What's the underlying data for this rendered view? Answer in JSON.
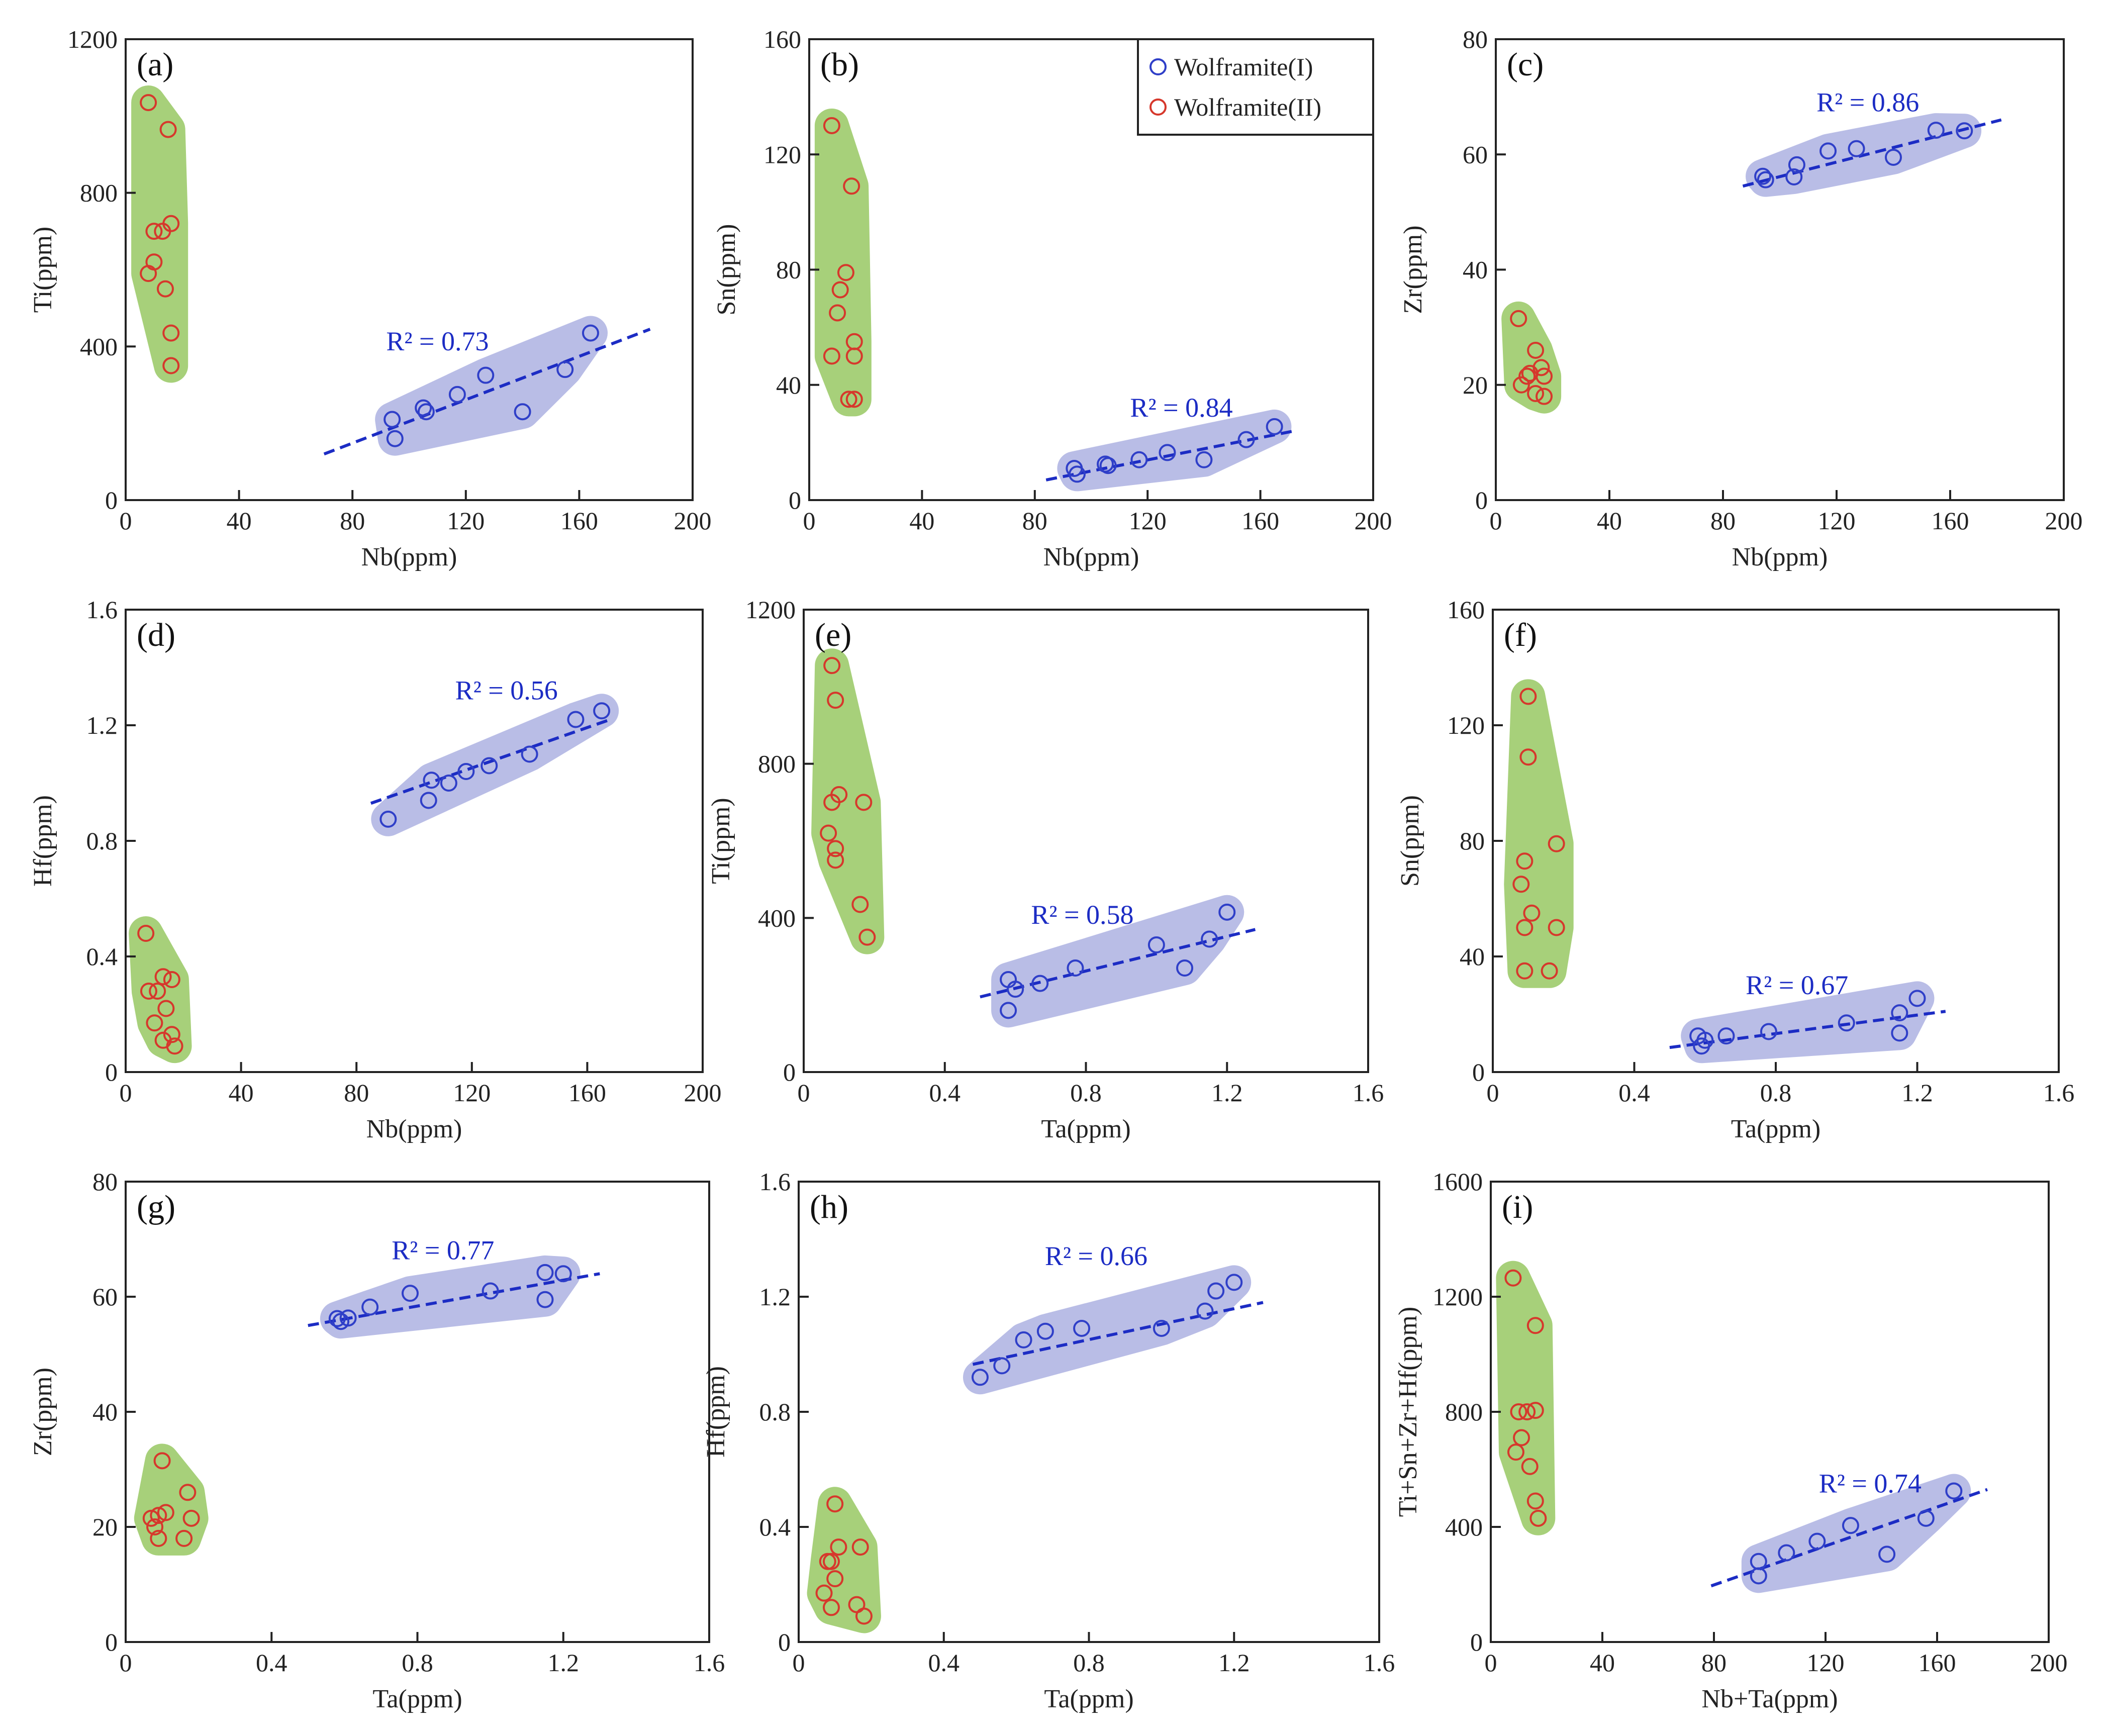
{
  "figure": {
    "colors": {
      "wolframite_I": "#2f3fc8",
      "wolframite_II": "#d6382c",
      "hull_I": "#b9bde6",
      "hull_II": "#a7d07a",
      "fit_line": "#1c2cc4",
      "axis": "#222222"
    }
  },
  "legend": {
    "entries": [
      {
        "label": "Wolframite(I)",
        "color": "#2f3fc8"
      },
      {
        "label": "Wolframite(II)",
        "color": "#d6382c"
      }
    ]
  },
  "chart_data": [
    {
      "panel_label": "(a)",
      "type": "scatter",
      "xlabel": "Nb(ppm)",
      "ylabel": "Ti(ppm)",
      "xlim": [
        0,
        200
      ],
      "ylim": [
        0,
        1200
      ],
      "xticks": [
        "0",
        "40",
        "80",
        "120",
        "160",
        "200"
      ],
      "yticks": [
        "0",
        "400",
        "800",
        "1200"
      ],
      "r2_text": "R² = 0.73",
      "r2_at": [
        110,
        390
      ],
      "fit_line": [
        [
          70,
          120
        ],
        [
          185,
          445
        ]
      ],
      "series": [
        {
          "name": "Wolframite(I)",
          "points": [
            [
              94,
              210
            ],
            [
              95,
              160
            ],
            [
              105,
              240
            ],
            [
              106,
              230
            ],
            [
              117,
              275
            ],
            [
              127,
              325
            ],
            [
              140,
              230
            ],
            [
              155,
              340
            ],
            [
              164,
              435
            ]
          ]
        },
        {
          "name": "Wolframite(II)",
          "points": [
            [
              8,
              1035
            ],
            [
              15,
              965
            ],
            [
              10,
              700
            ],
            [
              13,
              700
            ],
            [
              16,
              720
            ],
            [
              10,
              620
            ],
            [
              8,
              590
            ],
            [
              14,
              550
            ],
            [
              16,
              435
            ],
            [
              16,
              350
            ]
          ]
        }
      ]
    },
    {
      "panel_label": "(b)",
      "type": "scatter",
      "xlabel": "Nb(ppm)",
      "ylabel": "Sn(ppm)",
      "xlim": [
        0,
        200
      ],
      "ylim": [
        0,
        160
      ],
      "xticks": [
        "0",
        "40",
        "80",
        "120",
        "160",
        "200"
      ],
      "yticks": [
        "0",
        "40",
        "80",
        "120",
        "160"
      ],
      "r2_text": "R² = 0.84",
      "r2_at": [
        132,
        29
      ],
      "fit_line": [
        [
          84,
          7
        ],
        [
          172,
          24
        ]
      ],
      "series": [
        {
          "name": "Wolframite(I)",
          "points": [
            [
              94,
              11
            ],
            [
              95,
              9
            ],
            [
              105,
              12.5
            ],
            [
              106,
              12
            ],
            [
              117,
              14
            ],
            [
              127,
              16.5
            ],
            [
              140,
              14
            ],
            [
              155,
              21
            ],
            [
              165,
              25.5
            ]
          ]
        },
        {
          "name": "Wolframite(II)",
          "points": [
            [
              8,
              130
            ],
            [
              15,
              109
            ],
            [
              13,
              79
            ],
            [
              11,
              73
            ],
            [
              10,
              65
            ],
            [
              16,
              55
            ],
            [
              16,
              50
            ],
            [
              8,
              50
            ],
            [
              14,
              35
            ],
            [
              16,
              35
            ]
          ]
        }
      ]
    },
    {
      "panel_label": "(c)",
      "type": "scatter",
      "xlabel": "Nb(ppm)",
      "ylabel": "Zr(ppm)",
      "xlim": [
        0,
        200
      ],
      "ylim": [
        0,
        80
      ],
      "xticks": [
        "0",
        "40",
        "80",
        "120",
        "160",
        "200"
      ],
      "yticks": [
        "0",
        "20",
        "40",
        "60",
        "80"
      ],
      "r2_text": "R² = 0.86",
      "r2_at": [
        131,
        67.5
      ],
      "fit_line": [
        [
          87,
          54.5
        ],
        [
          178,
          66
        ]
      ],
      "series": [
        {
          "name": "Wolframite(I)",
          "points": [
            [
              94,
              56.2
            ],
            [
              95,
              55.6
            ],
            [
              105,
              56.1
            ],
            [
              106,
              58.2
            ],
            [
              117,
              60.6
            ],
            [
              127,
              61
            ],
            [
              140,
              59.5
            ],
            [
              155,
              64.2
            ],
            [
              165,
              64.1
            ]
          ]
        },
        {
          "name": "Wolframite(II)",
          "points": [
            [
              8,
              31.5
            ],
            [
              14,
              26
            ],
            [
              16,
              23
            ],
            [
              12,
              22
            ],
            [
              11,
              21.5
            ],
            [
              17,
              21.5
            ],
            [
              9,
              20
            ],
            [
              14,
              18.5
            ],
            [
              17,
              18
            ]
          ]
        }
      ]
    },
    {
      "panel_label": "(d)",
      "type": "scatter",
      "xlabel": "Nb(ppm)",
      "ylabel": "Hf(ppm)",
      "xlim": [
        0,
        200
      ],
      "ylim": [
        0,
        1.6
      ],
      "xticks": [
        "0",
        "40",
        "80",
        "120",
        "160",
        "200"
      ],
      "yticks": [
        "0",
        "0.4",
        "0.8",
        "1.2",
        "1.6"
      ],
      "r2_text": "R² = 0.56",
      "r2_at": [
        132,
        1.29
      ],
      "fit_line": [
        [
          85,
          0.93
        ],
        [
          168,
          1.22
        ]
      ],
      "series": [
        {
          "name": "Wolframite(I)",
          "points": [
            [
              91,
              0.875
            ],
            [
              105,
              0.94
            ],
            [
              106,
              1.01
            ],
            [
              112,
              1.0
            ],
            [
              118,
              1.04
            ],
            [
              126,
              1.06
            ],
            [
              140,
              1.1
            ],
            [
              156,
              1.22
            ],
            [
              165,
              1.25
            ]
          ]
        },
        {
          "name": "Wolframite(II)",
          "points": [
            [
              7,
              0.48
            ],
            [
              13,
              0.33
            ],
            [
              16,
              0.32
            ],
            [
              8,
              0.28
            ],
            [
              11,
              0.28
            ],
            [
              14,
              0.22
            ],
            [
              10,
              0.17
            ],
            [
              16,
              0.13
            ],
            [
              13,
              0.11
            ],
            [
              17,
              0.09
            ]
          ]
        }
      ]
    },
    {
      "panel_label": "(e)",
      "type": "scatter",
      "xlabel": "Ta(ppm)",
      "ylabel": "Ti(ppm)",
      "xlim": [
        0,
        1.6
      ],
      "ylim": [
        0,
        1200
      ],
      "xticks": [
        "0",
        "0.4",
        "0.8",
        "1.2",
        "1.6"
      ],
      "yticks": [
        "0",
        "400",
        "800",
        "1200"
      ],
      "r2_text": "R² = 0.58",
      "r2_at": [
        0.79,
        385
      ],
      "fit_line": [
        [
          0.5,
          195
        ],
        [
          1.28,
          370
        ]
      ],
      "series": [
        {
          "name": "Wolframite(I)",
          "points": [
            [
              0.58,
              240
            ],
            [
              0.6,
              215
            ],
            [
              0.67,
              230
            ],
            [
              0.58,
              160
            ],
            [
              0.77,
              270
            ],
            [
              1.0,
              330
            ],
            [
              1.08,
              270
            ],
            [
              1.15,
              345
            ],
            [
              1.2,
              415
            ]
          ]
        },
        {
          "name": "Wolframite(II)",
          "points": [
            [
              0.08,
              1055
            ],
            [
              0.09,
              965
            ],
            [
              0.1,
              720
            ],
            [
              0.17,
              700
            ],
            [
              0.08,
              700
            ],
            [
              0.07,
              620
            ],
            [
              0.09,
              580
            ],
            [
              0.09,
              550
            ],
            [
              0.16,
              435
            ],
            [
              0.18,
              350
            ]
          ]
        }
      ]
    },
    {
      "panel_label": "(f)",
      "type": "scatter",
      "xlabel": "Ta(ppm)",
      "ylabel": "Sn(ppm)",
      "xlim": [
        0,
        1.6
      ],
      "ylim": [
        0,
        160
      ],
      "xticks": [
        "0",
        "0.4",
        "0.8",
        "1.2",
        "1.6"
      ],
      "yticks": [
        "0",
        "40",
        "80",
        "120",
        "160"
      ],
      "r2_text": "R² = 0.67",
      "r2_at": [
        0.86,
        27
      ],
      "fit_line": [
        [
          0.5,
          8.5
        ],
        [
          1.28,
          21
        ]
      ],
      "series": [
        {
          "name": "Wolframite(I)",
          "points": [
            [
              0.58,
              12.5
            ],
            [
              0.59,
              9
            ],
            [
              0.6,
              11
            ],
            [
              0.66,
              12.5
            ],
            [
              0.78,
              14
            ],
            [
              1.0,
              17
            ],
            [
              1.15,
              20.5
            ],
            [
              1.15,
              13.5
            ],
            [
              1.2,
              25.5
            ]
          ]
        },
        {
          "name": "Wolframite(II)",
          "points": [
            [
              0.1,
              130
            ],
            [
              0.1,
              109
            ],
            [
              0.18,
              79
            ],
            [
              0.09,
              73
            ],
            [
              0.08,
              65
            ],
            [
              0.11,
              55
            ],
            [
              0.09,
              50
            ],
            [
              0.18,
              50
            ],
            [
              0.09,
              35
            ],
            [
              0.16,
              35
            ]
          ]
        }
      ]
    },
    {
      "panel_label": "(g)",
      "type": "scatter",
      "xlabel": "Ta(ppm)",
      "ylabel": "Zr(ppm)",
      "xlim": [
        0,
        1.6
      ],
      "ylim": [
        0,
        80
      ],
      "xticks": [
        "0",
        "0.4",
        "0.8",
        "1.2",
        "1.6"
      ],
      "yticks": [
        "0",
        "20",
        "40",
        "60",
        "80"
      ],
      "r2_text": "R² = 0.77",
      "r2_at": [
        0.87,
        66.5
      ],
      "fit_line": [
        [
          0.5,
          55
        ],
        [
          1.3,
          64
        ]
      ],
      "series": [
        {
          "name": "Wolframite(I)",
          "points": [
            [
              0.58,
              56.2
            ],
            [
              0.59,
              55.7
            ],
            [
              0.61,
              56.3
            ],
            [
              0.67,
              58.2
            ],
            [
              0.78,
              60.6
            ],
            [
              1.0,
              61
            ],
            [
              1.15,
              64.2
            ],
            [
              1.2,
              64
            ],
            [
              1.15,
              59.5
            ]
          ]
        },
        {
          "name": "Wolframite(II)",
          "points": [
            [
              0.1,
              31.5
            ],
            [
              0.17,
              26
            ],
            [
              0.11,
              22.5
            ],
            [
              0.09,
              22
            ],
            [
              0.07,
              21.5
            ],
            [
              0.18,
              21.5
            ],
            [
              0.08,
              20
            ],
            [
              0.09,
              18
            ],
            [
              0.16,
              18
            ]
          ]
        }
      ]
    },
    {
      "panel_label": "(h)",
      "type": "scatter",
      "xlabel": "Ta(ppm)",
      "ylabel": "Hf(ppm)",
      "xlim": [
        0,
        1.6
      ],
      "ylim": [
        0,
        1.6
      ],
      "xticks": [
        "0",
        "0.4",
        "0.8",
        "1.2",
        "1.6"
      ],
      "yticks": [
        "0",
        "0.4",
        "0.8",
        "1.2",
        "1.6"
      ],
      "r2_text": "R² = 0.66",
      "r2_at": [
        0.82,
        1.31
      ],
      "fit_line": [
        [
          0.48,
          0.965
        ],
        [
          1.28,
          1.18
        ]
      ],
      "series": [
        {
          "name": "Wolframite(I)",
          "points": [
            [
              0.5,
              0.92
            ],
            [
              0.56,
              0.96
            ],
            [
              0.62,
              1.05
            ],
            [
              0.68,
              1.08
            ],
            [
              0.78,
              1.09
            ],
            [
              1.0,
              1.09
            ],
            [
              1.12,
              1.15
            ],
            [
              1.15,
              1.22
            ],
            [
              1.2,
              1.25
            ]
          ]
        },
        {
          "name": "Wolframite(II)",
          "points": [
            [
              0.1,
              0.48
            ],
            [
              0.11,
              0.33
            ],
            [
              0.17,
              0.33
            ],
            [
              0.09,
              0.28
            ],
            [
              0.08,
              0.28
            ],
            [
              0.1,
              0.22
            ],
            [
              0.07,
              0.17
            ],
            [
              0.16,
              0.13
            ],
            [
              0.09,
              0.12
            ],
            [
              0.18,
              0.09
            ]
          ]
        }
      ]
    },
    {
      "panel_label": "(i)",
      "type": "scatter",
      "xlabel": "Nb+Ta(ppm)",
      "ylabel": "Ti+Sn+Zr+Hf(ppm)",
      "xlim": [
        0,
        200
      ],
      "ylim": [
        0,
        1600
      ],
      "xticks": [
        "0",
        "40",
        "80",
        "120",
        "160",
        "200"
      ],
      "yticks": [
        "0",
        "400",
        "800",
        "1200",
        "1600"
      ],
      "r2_text": "R² = 0.74",
      "r2_at": [
        136,
        520
      ],
      "fit_line": [
        [
          79,
          195
        ],
        [
          178,
          530
        ]
      ],
      "series": [
        {
          "name": "Wolframite(I)",
          "points": [
            [
              96,
              280
            ],
            [
              96,
              230
            ],
            [
              106,
              310
            ],
            [
              117,
              350
            ],
            [
              129,
              405
            ],
            [
              142,
              305
            ],
            [
              156,
              430
            ],
            [
              166,
              525
            ]
          ]
        },
        {
          "name": "Wolframite(II)",
          "points": [
            [
              8,
              1265
            ],
            [
              16,
              1100
            ],
            [
              13,
              800
            ],
            [
              10,
              800
            ],
            [
              16,
              805
            ],
            [
              11,
              710
            ],
            [
              9,
              660
            ],
            [
              14,
              610
            ],
            [
              16,
              490
            ],
            [
              17,
              430
            ]
          ]
        }
      ]
    }
  ]
}
